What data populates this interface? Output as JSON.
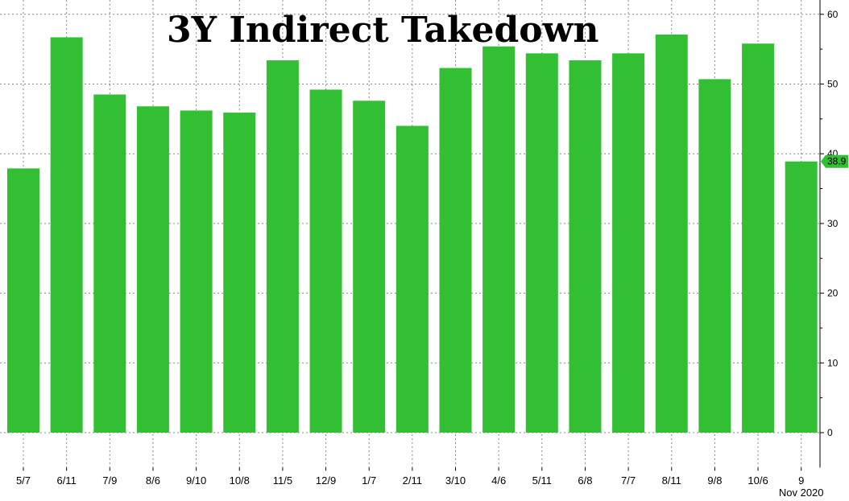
{
  "chart_data": {
    "type": "bar",
    "title": "3Y Indirect Takedown",
    "categories": [
      "5/7",
      "6/11",
      "7/9",
      "8/6",
      "9/10",
      "10/8",
      "11/5",
      "12/9",
      "1/7",
      "2/11",
      "3/10",
      "4/6",
      "5/11",
      "6/8",
      "7/7",
      "8/11",
      "9/8",
      "10/6",
      "9"
    ],
    "values": [
      37.9,
      56.7,
      48.5,
      46.8,
      46.2,
      45.9,
      53.4,
      49.2,
      47.6,
      44.0,
      52.3,
      55.4,
      54.4,
      53.4,
      54.4,
      57.1,
      50.7,
      55.8,
      38.9
    ],
    "ylim": [
      -5,
      60
    ],
    "yticks": [
      0,
      10,
      20,
      30,
      40,
      50,
      60
    ],
    "last_value_label": "38.9",
    "last_period_label": "Nov 2020",
    "bar_color": "#33bf33",
    "grid": true,
    "y_axis_side": "right"
  }
}
